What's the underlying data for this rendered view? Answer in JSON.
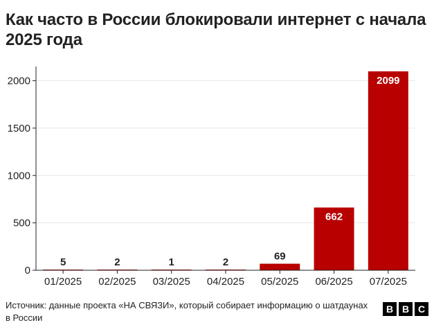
{
  "title": "Как часто в России блокировали интернет с начала 2025 года",
  "source": "Источник: данные проекта «НА СВЯЗИ», который собирает информацию о шатдаунах в России",
  "logo": [
    "B",
    "B",
    "C"
  ],
  "colors": {
    "bar": "#b80000",
    "bar_label_inside": "#ffffff",
    "bar_label_outside": "#222222",
    "axis": "#222222",
    "grid": "#e6e6e6"
  },
  "chart_data": {
    "type": "bar",
    "categories": [
      "01/2025",
      "02/2025",
      "03/2025",
      "04/2025",
      "05/2025",
      "06/2025",
      "07/2025"
    ],
    "values": [
      5,
      2,
      1,
      2,
      69,
      662,
      2099
    ],
    "title": "Как часто в России блокировали интернет с начала 2025 года",
    "xlabel": "",
    "ylabel": "",
    "ylim": [
      0,
      2150
    ],
    "yticks": [
      0,
      500,
      1000,
      1500,
      2000
    ],
    "grid": true,
    "legend": "none"
  }
}
